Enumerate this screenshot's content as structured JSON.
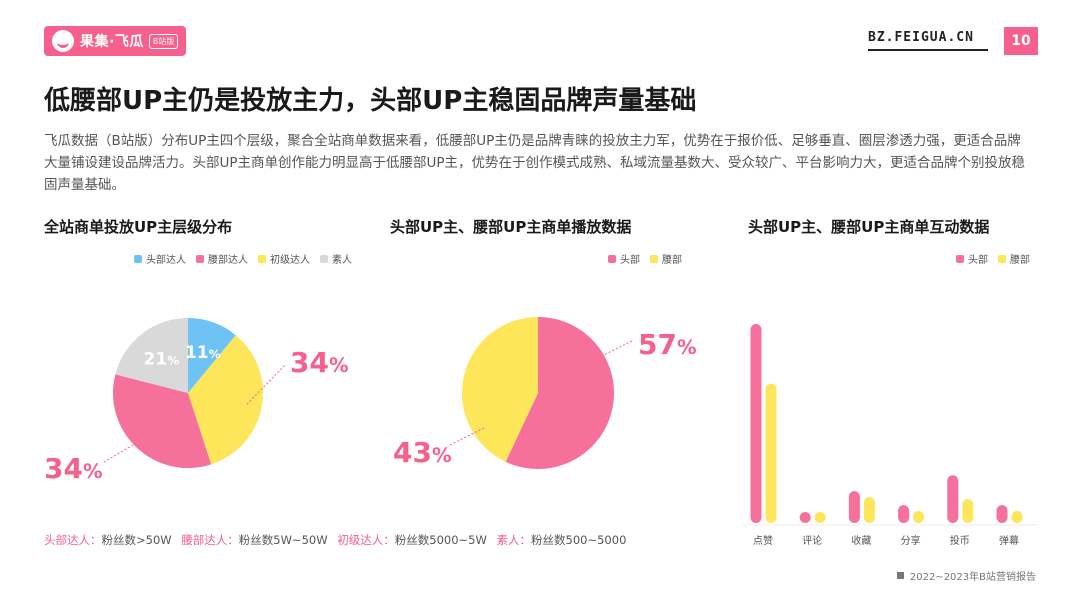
{
  "header": {
    "logo_text": "果集·飞瓜",
    "logo_badge": "B站版",
    "site_url": "BZ.FEIGUA.CN",
    "page_number": "10"
  },
  "page_title": "低腰部UP主仍是投放主力，头部UP主稳固品牌声量基础",
  "intro": "飞瓜数据（B站版）分布UP主四个层级，聚合全站商单数据来看，低腰部UP主仍是品牌青睐的投放主力军，优势在于报价低、足够垂直、圈层渗透力强，更适合品牌大量铺设建设品牌活力。头部UP主商单创作能力明显高于低腰部UP主，优势在于创作模式成熟、私域流量基数大、受众较广、平台影响力大，更适合品牌个别投放稳固声量基础。",
  "colors": {
    "head": "#6ec3f4",
    "waist": "#f5719b",
    "junior": "#fde65a",
    "amateur": "#d9d9d9",
    "accent": "#f5608f"
  },
  "chart_data": [
    {
      "type": "pie",
      "title": "全站商单投放UP主层级分布",
      "legend_position": "top-right",
      "series": [
        {
          "name": "头部达人",
          "value": 11,
          "label": "11%"
        },
        {
          "name": "腰部达人",
          "value": 34,
          "label": "34%"
        },
        {
          "name": "初级达人",
          "value": 34,
          "label": "34%"
        },
        {
          "name": "素人",
          "value": 21,
          "label": "21%"
        }
      ]
    },
    {
      "type": "pie",
      "title": "头部UP主、腰部UP主商单播放数据",
      "legend_position": "top-right",
      "series": [
        {
          "name": "头部",
          "value": 57,
          "label": "57%"
        },
        {
          "name": "腰部",
          "value": 43,
          "label": "43%"
        }
      ]
    },
    {
      "type": "bar",
      "title": "头部UP主、腰部UP主商单互动数据",
      "legend_position": "top-right",
      "grid": false,
      "categories": [
        "点赞",
        "评论",
        "收藏",
        "分享",
        "投币",
        "弹幕"
      ],
      "ylim": [
        0,
        100
      ],
      "series": [
        {
          "name": "头部",
          "values": [
            100,
            5,
            16,
            9,
            24,
            9
          ]
        },
        {
          "name": "腰部",
          "values": [
            70,
            4,
            13,
            6,
            12,
            6
          ]
        }
      ]
    }
  ],
  "legend_labels": {
    "pie1": [
      "头部达人",
      "腰部达人",
      "初级达人",
      "素人"
    ],
    "pie2": [
      "头部",
      "腰部"
    ],
    "bar": [
      "头部",
      "腰部"
    ]
  },
  "footnote": [
    {
      "key": "头部达人：",
      "value": "粉丝数>50W"
    },
    {
      "key": "腰部达人：",
      "value": "粉丝数5W~50W"
    },
    {
      "key": "初级达人：",
      "value": "粉丝数5000~5W"
    },
    {
      "key": "素人：",
      "value": "粉丝数500~5000"
    }
  ],
  "source": "2022~2023年B站营销报告"
}
